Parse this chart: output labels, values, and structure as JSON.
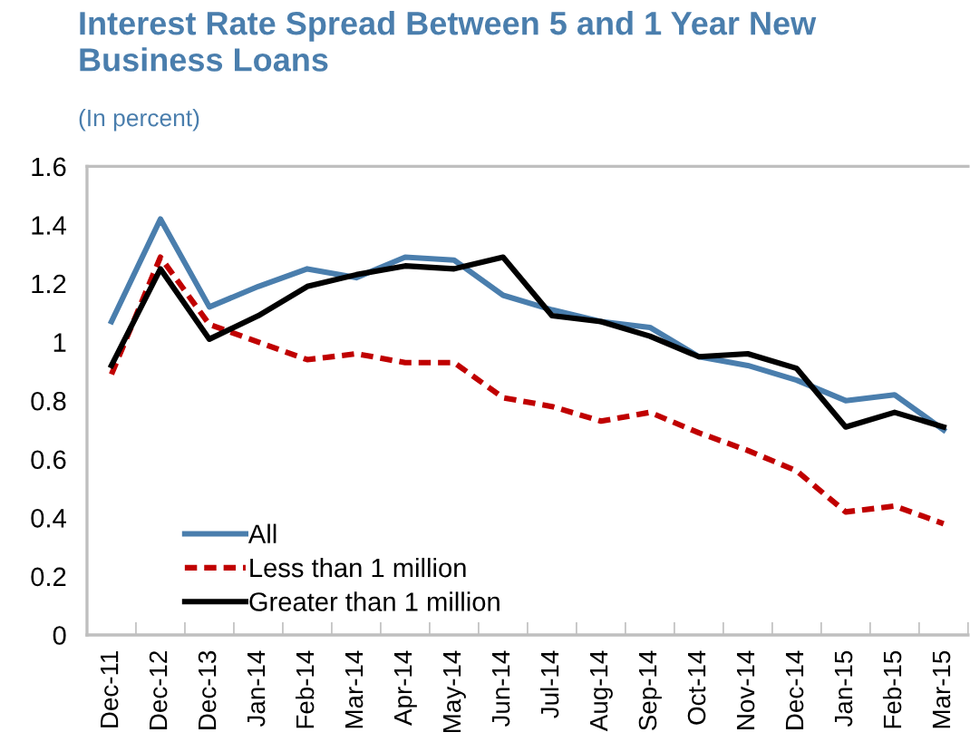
{
  "chart_data": {
    "type": "line",
    "title": "Interest Rate Spread Between 5 and 1 Year New Business Loans",
    "subtitle": "(In percent)",
    "categories": [
      "Dec-11",
      "Dec-12",
      "Dec-13",
      "Jan-14",
      "Feb-14",
      "Mar-14",
      "Apr-14",
      "May-14",
      "Jun-14",
      "Jul-14",
      "Aug-14",
      "Sep-14",
      "Oct-14",
      "Nov-14",
      "Dec-14",
      "Jan-15",
      "Feb-15",
      "Mar-15"
    ],
    "series": [
      {
        "name": "All",
        "color": "#4a7ead",
        "line_style": "solid",
        "values": [
          1.07,
          1.42,
          1.12,
          1.19,
          1.25,
          1.22,
          1.29,
          1.28,
          1.16,
          1.11,
          1.07,
          1.05,
          0.95,
          0.92,
          0.87,
          0.8,
          0.82,
          0.7
        ]
      },
      {
        "name": "Less than 1 million",
        "color": "#c00000",
        "line_style": "dashed",
        "values": [
          0.89,
          1.29,
          1.06,
          1.0,
          0.94,
          0.96,
          0.93,
          0.93,
          0.81,
          0.78,
          0.73,
          0.76,
          0.69,
          0.63,
          0.56,
          0.42,
          0.44,
          0.38
        ]
      },
      {
        "name": "Greater than 1 million",
        "color": "#000000",
        "line_style": "solid",
        "values": [
          0.92,
          1.25,
          1.01,
          1.09,
          1.19,
          1.23,
          1.26,
          1.25,
          1.29,
          1.09,
          1.07,
          1.02,
          0.95,
          0.96,
          0.91,
          0.71,
          0.76,
          0.71
        ]
      }
    ],
    "ylim": [
      0,
      1.6
    ],
    "yticks": [
      0,
      0.2,
      0.4,
      0.6,
      0.8,
      1,
      1.2,
      1.4,
      1.6
    ],
    "grid": false,
    "legend": "bottom left",
    "marker": "none"
  }
}
